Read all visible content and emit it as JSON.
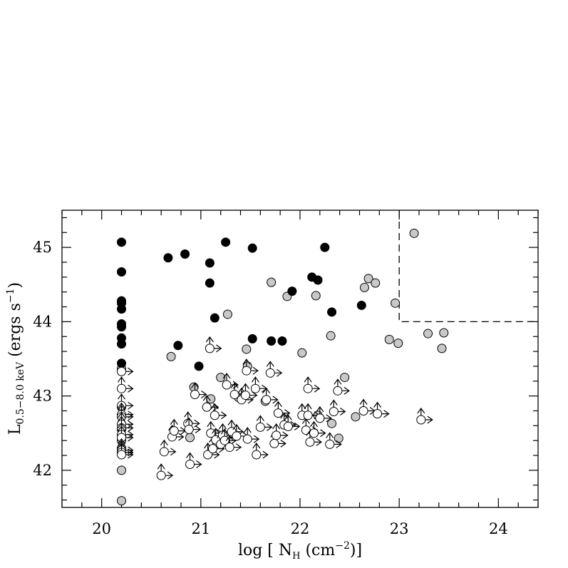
{
  "chart_data": {
    "type": "scatter",
    "xlabel": "log [ N_H (cm^-2)]",
    "ylabel": "L_0.5-8.0 keV (ergs s^-1)",
    "xlim": [
      19.6,
      24.4
    ],
    "ylim": [
      41.5,
      45.5
    ],
    "xticks": [
      "20",
      "21",
      "22",
      "23",
      "24"
    ],
    "yticks": [
      "42",
      "43",
      "44",
      "45"
    ],
    "grid": false,
    "series": [
      {
        "marker": "black-filled-circle",
        "color": "#000000",
        "points": [
          [
            20.2,
            45.07
          ],
          [
            20.2,
            44.67
          ],
          [
            20.2,
            44.28
          ],
          [
            20.2,
            44.25
          ],
          [
            20.2,
            44.17
          ],
          [
            20.2,
            43.97
          ],
          [
            20.2,
            43.93
          ],
          [
            20.2,
            43.78
          ],
          [
            20.2,
            43.7
          ],
          [
            20.2,
            43.44
          ],
          [
            20.67,
            44.86
          ],
          [
            20.84,
            44.91
          ],
          [
            21.09,
            44.79
          ],
          [
            21.09,
            44.52
          ],
          [
            21.25,
            45.07
          ],
          [
            21.52,
            44.99
          ],
          [
            20.77,
            43.68
          ],
          [
            20.98,
            43.4
          ],
          [
            21.14,
            44.05
          ],
          [
            21.52,
            43.77
          ],
          [
            21.71,
            43.74
          ],
          [
            21.82,
            43.74
          ],
          [
            21.92,
            44.41
          ],
          [
            22.12,
            44.6
          ],
          [
            22.18,
            44.56
          ],
          [
            22.25,
            45.0
          ],
          [
            22.32,
            44.13
          ],
          [
            22.62,
            44.22
          ]
        ]
      },
      {
        "marker": "gray-filled-circle",
        "color": "#c8c8c8",
        "points": [
          [
            20.2,
            43.37
          ],
          [
            20.2,
            42.0
          ],
          [
            20.2,
            41.59
          ],
          [
            20.2,
            42.55
          ],
          [
            20.2,
            42.85
          ],
          [
            20.2,
            42.3
          ],
          [
            20.2,
            42.4
          ],
          [
            20.7,
            43.53
          ],
          [
            20.93,
            43.12
          ],
          [
            21.2,
            43.25
          ],
          [
            21.27,
            44.1
          ],
          [
            21.46,
            43.63
          ],
          [
            21.71,
            44.53
          ],
          [
            21.87,
            44.34
          ],
          [
            22.02,
            43.58
          ],
          [
            22.16,
            44.35
          ],
          [
            22.31,
            43.81
          ],
          [
            22.45,
            43.25
          ],
          [
            22.56,
            42.72
          ],
          [
            22.65,
            44.46
          ],
          [
            22.69,
            44.58
          ],
          [
            22.76,
            44.52
          ],
          [
            22.9,
            43.76
          ],
          [
            22.96,
            44.25
          ],
          [
            22.99,
            43.71
          ],
          [
            23.15,
            45.19
          ],
          [
            23.29,
            43.84
          ],
          [
            23.43,
            43.64
          ],
          [
            23.45,
            43.85
          ],
          [
            22.39,
            42.43
          ],
          [
            22.32,
            42.63
          ],
          [
            21.65,
            42.93
          ],
          [
            22.18,
            42.74
          ],
          [
            20.89,
            42.44
          ],
          [
            21.1,
            42.96
          ],
          [
            21.47,
            43.4
          ],
          [
            21.38,
            42.98
          ]
        ]
      },
      {
        "marker": "open-circle-limit-arrows",
        "color": "#ffffff",
        "points": [
          [
            20.2,
            43.33
          ],
          [
            20.2,
            43.1
          ],
          [
            20.2,
            42.87
          ],
          [
            20.2,
            42.75
          ],
          [
            20.2,
            42.72
          ],
          [
            20.2,
            42.62
          ],
          [
            20.2,
            42.57
          ],
          [
            20.2,
            42.48
          ],
          [
            20.2,
            42.44
          ],
          [
            20.2,
            42.27
          ],
          [
            20.2,
            42.24
          ],
          [
            20.2,
            42.21
          ],
          [
            20.6,
            41.93
          ],
          [
            20.63,
            42.25
          ],
          [
            20.71,
            42.45
          ],
          [
            20.73,
            42.53
          ],
          [
            20.87,
            42.63
          ],
          [
            20.88,
            42.55
          ],
          [
            20.89,
            42.08
          ],
          [
            20.94,
            43.02
          ],
          [
            21.06,
            42.85
          ],
          [
            21.07,
            42.21
          ],
          [
            21.09,
            43.64
          ],
          [
            21.1,
            42.5
          ],
          [
            21.12,
            42.29
          ],
          [
            21.14,
            42.74
          ],
          [
            21.15,
            42.41
          ],
          [
            21.2,
            42.35
          ],
          [
            21.22,
            42.47
          ],
          [
            21.24,
            42.4
          ],
          [
            21.26,
            43.15
          ],
          [
            21.29,
            42.31
          ],
          [
            21.31,
            42.52
          ],
          [
            21.34,
            43.02
          ],
          [
            21.36,
            42.46
          ],
          [
            21.41,
            42.95
          ],
          [
            21.45,
            43.01
          ],
          [
            21.46,
            43.34
          ],
          [
            21.47,
            42.42
          ],
          [
            21.55,
            43.1
          ],
          [
            21.56,
            42.21
          ],
          [
            21.6,
            42.58
          ],
          [
            21.66,
            42.95
          ],
          [
            21.7,
            43.31
          ],
          [
            21.74,
            42.36
          ],
          [
            21.76,
            42.47
          ],
          [
            21.78,
            42.77
          ],
          [
            21.84,
            42.61
          ],
          [
            21.88,
            42.59
          ],
          [
            22.02,
            42.74
          ],
          [
            22.06,
            42.54
          ],
          [
            22.08,
            42.74
          ],
          [
            22.08,
            43.1
          ],
          [
            22.1,
            42.38
          ],
          [
            22.14,
            42.5
          ],
          [
            22.2,
            42.7
          ],
          [
            22.3,
            42.35
          ],
          [
            22.34,
            42.79
          ],
          [
            22.38,
            43.07
          ],
          [
            22.64,
            42.8
          ],
          [
            22.78,
            42.76
          ],
          [
            23.22,
            42.68
          ]
        ]
      }
    ],
    "annotations": [
      {
        "type": "dashed-region",
        "x_from": 23.0,
        "y_from": 44.0
      }
    ]
  }
}
